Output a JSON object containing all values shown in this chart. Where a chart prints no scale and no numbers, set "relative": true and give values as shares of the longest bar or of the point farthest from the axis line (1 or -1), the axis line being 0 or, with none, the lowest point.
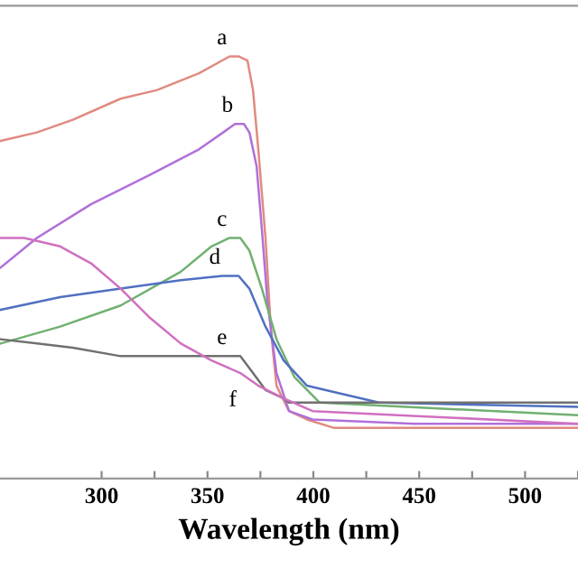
{
  "chart_data": {
    "type": "line",
    "relative": true,
    "xlabel": "Wavelength (nm)",
    "xlim": [
      252,
      525
    ],
    "xticks": [
      300,
      {
        "value": 325,
        "label": null
      },
      350,
      {
        "value": 375,
        "label": null
      },
      400,
      {
        "value": 425,
        "label": null
      },
      450,
      {
        "value": 475,
        "label": null
      },
      500,
      {
        "value": 525,
        "label": null
      }
    ],
    "grid": false,
    "legend": false,
    "marker": "none",
    "line_style": "solid",
    "series": [
      {
        "color": "#e08a80",
        "x": [
          252.3,
          269.4,
          286.4,
          309,
          326,
          346,
          360.4,
          364.7,
          368.9,
          371.5,
          374,
          377.4,
          380,
          382.6,
          388.5,
          397,
          409.8,
          448,
          524.7
        ],
        "values": [
          0.8,
          0.82,
          0.85,
          0.9,
          0.92,
          0.96,
          1.0,
          1.0,
          0.99,
          0.92,
          0.78,
          0.57,
          0.35,
          0.22,
          0.16,
          0.14,
          0.12,
          0.12,
          0.12
        ]
      },
      {
        "color": "#b070d8",
        "x": [
          252.3,
          269.4,
          295,
          323,
          346,
          357.4,
          363,
          367.2,
          369.8,
          373.2,
          375.7,
          378.3,
          382.6,
          388.5,
          399.6,
          448,
          524.7
        ],
        "values": [
          0.5,
          0.57,
          0.65,
          0.72,
          0.78,
          0.82,
          0.84,
          0.84,
          0.82,
          0.74,
          0.59,
          0.42,
          0.25,
          0.16,
          0.14,
          0.13,
          0.13
        ]
      },
      {
        "color": "#70b070",
        "x": [
          252.3,
          280.4,
          309,
          337.4,
          351.9,
          360.4,
          365.5,
          369.8,
          375.7,
          382.6,
          391.1,
          403,
          524.7
        ],
        "values": [
          0.32,
          0.36,
          0.41,
          0.49,
          0.55,
          0.57,
          0.57,
          0.54,
          0.45,
          0.33,
          0.24,
          0.18,
          0.15
        ]
      },
      {
        "color": "#5070c0",
        "x": [
          252.3,
          280.4,
          309,
          337.4,
          357,
          364.7,
          369.8,
          377.4,
          386,
          397,
          405.5,
          431,
          524.7
        ],
        "values": [
          0.4,
          0.43,
          0.45,
          0.47,
          0.48,
          0.48,
          0.45,
          0.36,
          0.28,
          0.22,
          0.21,
          0.18,
          0.17
        ]
      },
      {
        "color": "#707070",
        "x": [
          252.3,
          269.4,
          286.4,
          309,
          337.4,
          360.4,
          365.5,
          371.5,
          377.4,
          386,
          388.5,
          524.7
        ],
        "values": [
          0.33,
          0.32,
          0.31,
          0.29,
          0.29,
          0.29,
          0.29,
          0.25,
          0.21,
          0.19,
          0.18,
          0.18
        ]
      },
      {
        "color": "#d070c0",
        "x": [
          252.3,
          263.4,
          280.4,
          295,
          309,
          323,
          337.4,
          351.9,
          365.5,
          374,
          386,
          399.6,
          524.7
        ],
        "values": [
          0.57,
          0.57,
          0.55,
          0.51,
          0.45,
          0.38,
          0.32,
          0.28,
          0.25,
          0.22,
          0.19,
          0.16,
          0.13
        ]
      }
    ],
    "annotations": [
      {
        "text": "a",
        "x": 360.4,
        "y": 1.0
      },
      {
        "text": "b",
        "x": 363,
        "y": 0.84
      },
      {
        "text": "c",
        "x": 360.4,
        "y": 0.57
      },
      {
        "text": "d",
        "x": 357,
        "y": 0.48
      },
      {
        "text": "e",
        "x": 360.4,
        "y": 0.29
      },
      {
        "text": "f",
        "x": 365.5,
        "y": 0.25
      }
    ]
  }
}
